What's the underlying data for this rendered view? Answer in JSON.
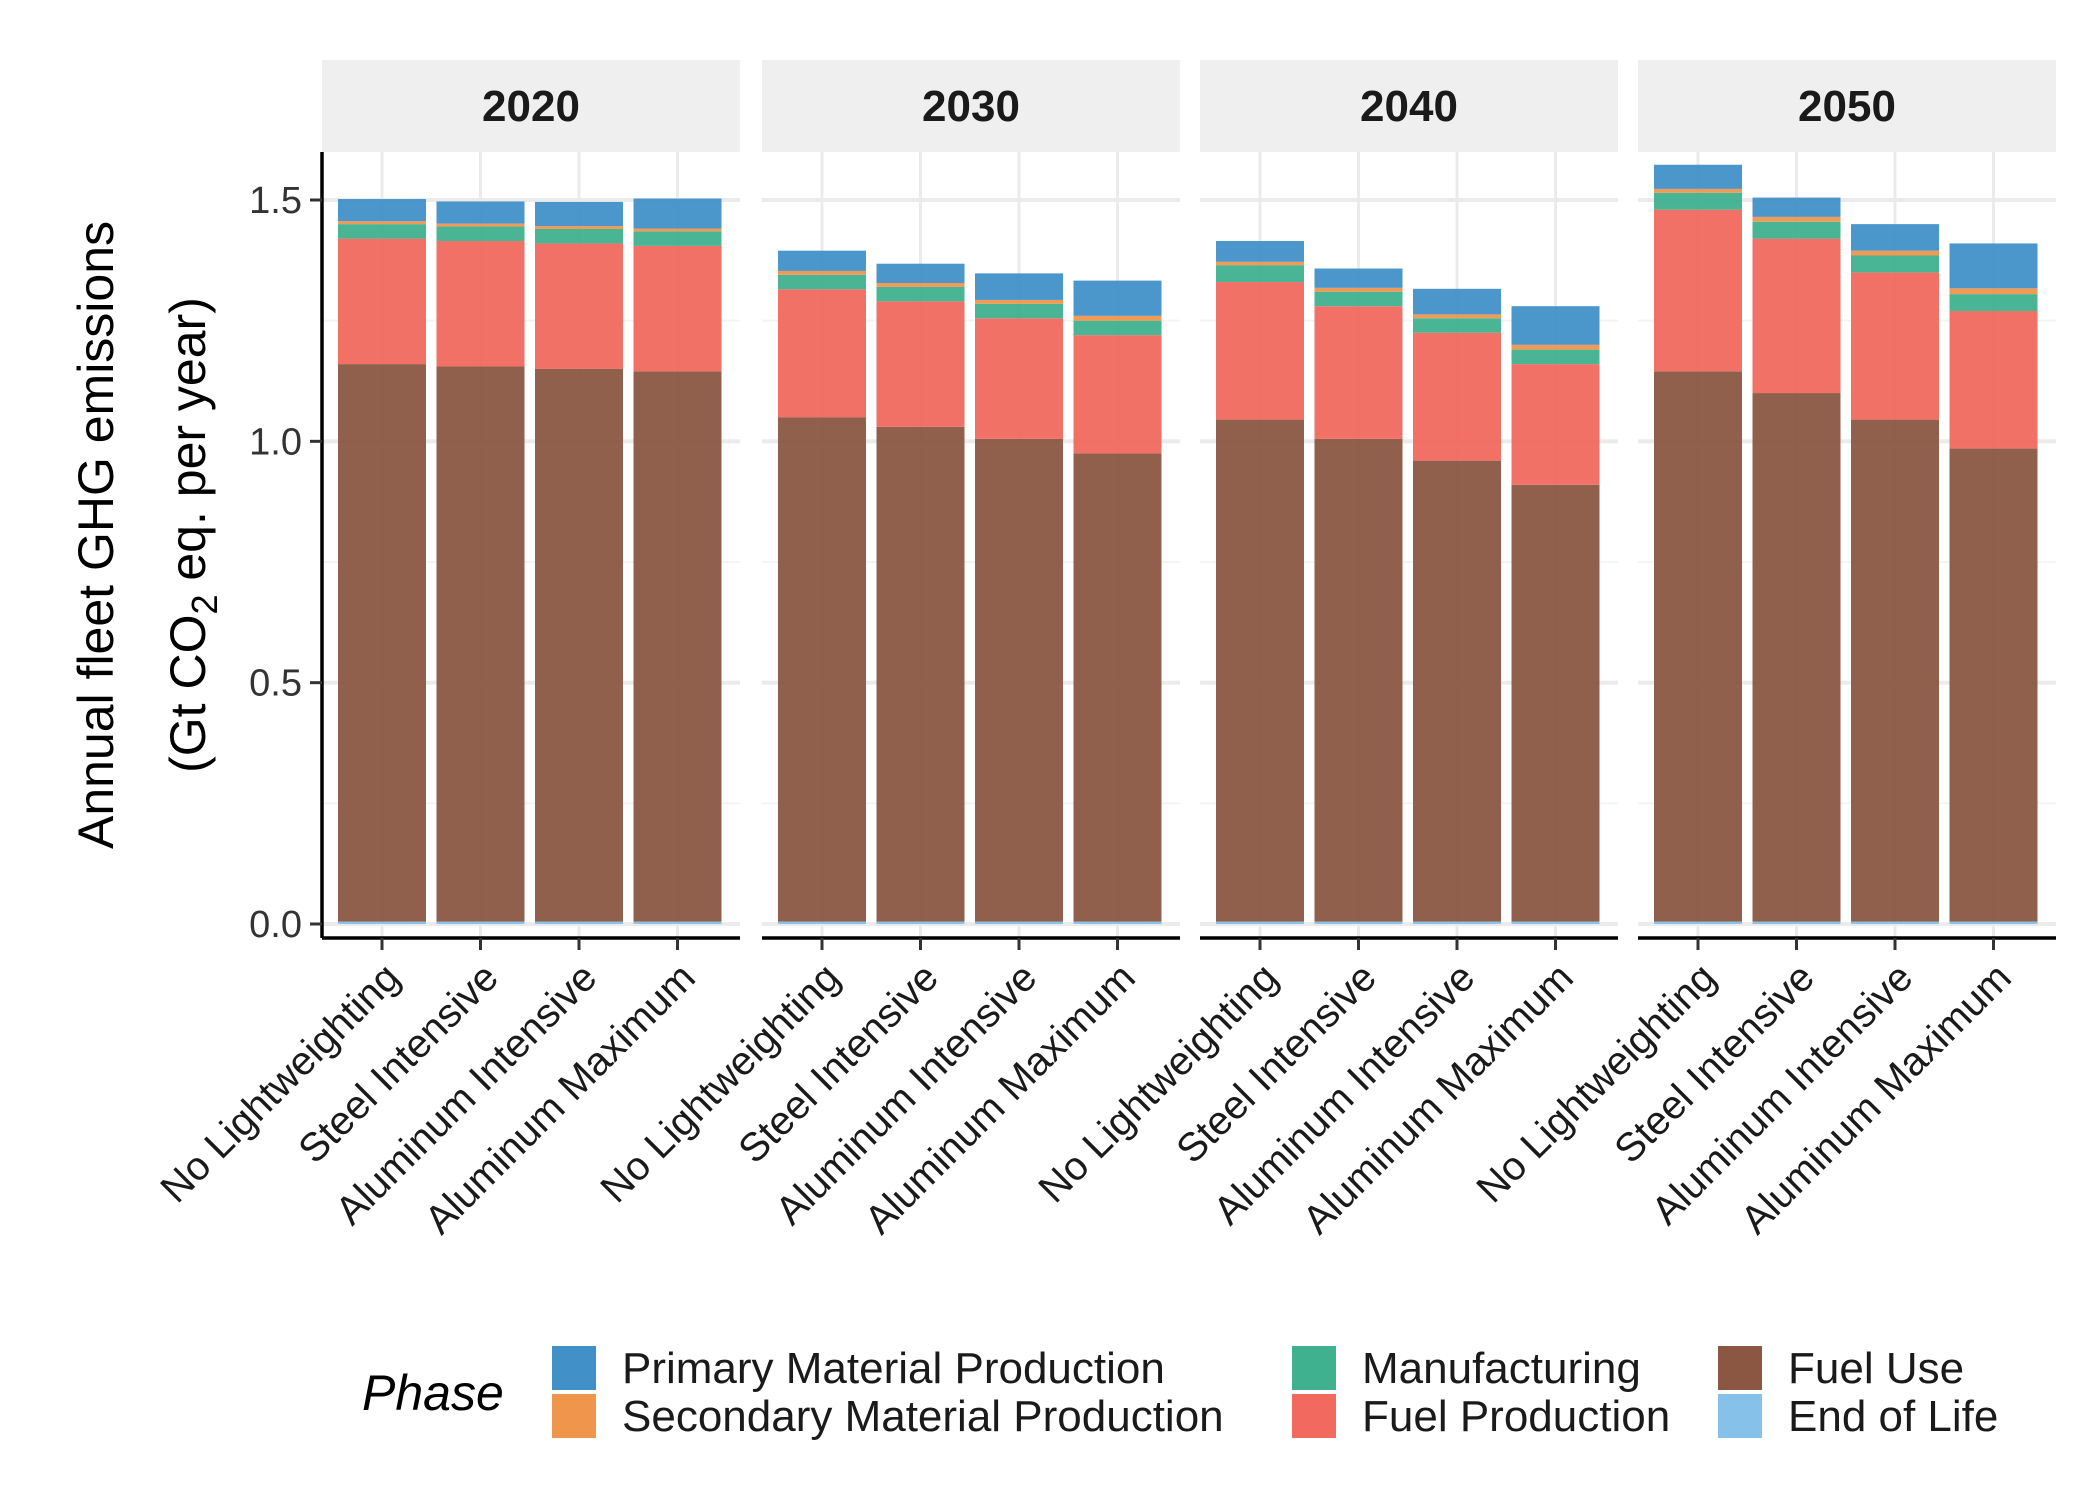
{
  "chart_data": {
    "type": "bar",
    "stacked": true,
    "facets": [
      "2020",
      "2030",
      "2040",
      "2050"
    ],
    "categories": [
      "No Lightweighting",
      "Steel Intensive",
      "Aluminum Intensive",
      "Aluminum Maximum"
    ],
    "ylabel_line1": "Annual fleet GHG emissions",
    "ylabel_line2_prefix": "(Gt CO",
    "ylabel_line2_sub": "2",
    "ylabel_line2_suffix": " eq. per year)",
    "ylim": [
      0,
      1.6
    ],
    "yticks": [
      0.0,
      0.5,
      1.0,
      1.5
    ],
    "ytick_labels": [
      "0.0",
      "0.5",
      "1.0",
      "1.5"
    ],
    "legend_title": "Phase",
    "legend_position": "bottom",
    "grid": true,
    "series": [
      {
        "name": "End of Life",
        "color": "#85C1E9",
        "values": [
          [
            0.005,
            0.005,
            0.005,
            0.005
          ],
          [
            0.005,
            0.005,
            0.005,
            0.005
          ],
          [
            0.005,
            0.005,
            0.005,
            0.005
          ],
          [
            0.005,
            0.005,
            0.005,
            0.005
          ]
        ]
      },
      {
        "name": "Fuel Use",
        "color": "#8B5742",
        "values": [
          [
            1.155,
            1.15,
            1.145,
            1.14
          ],
          [
            1.045,
            1.025,
            1.0,
            0.97
          ],
          [
            1.04,
            1.0,
            0.955,
            0.905
          ],
          [
            1.14,
            1.095,
            1.04,
            0.98
          ]
        ]
      },
      {
        "name": "Fuel Production",
        "color": "#F1695F",
        "values": [
          [
            0.26,
            0.26,
            0.26,
            0.26
          ],
          [
            0.265,
            0.26,
            0.25,
            0.245
          ],
          [
            0.285,
            0.275,
            0.265,
            0.25
          ],
          [
            0.335,
            0.32,
            0.305,
            0.285
          ]
        ]
      },
      {
        "name": "Manufacturing",
        "color": "#3FB18E",
        "values": [
          [
            0.03,
            0.03,
            0.03,
            0.03
          ],
          [
            0.03,
            0.03,
            0.03,
            0.03
          ],
          [
            0.035,
            0.03,
            0.03,
            0.03
          ],
          [
            0.035,
            0.035,
            0.035,
            0.035
          ]
        ]
      },
      {
        "name": "Secondary Material Production",
        "color": "#F0954C",
        "values": [
          [
            0.006,
            0.006,
            0.006,
            0.006
          ],
          [
            0.008,
            0.008,
            0.008,
            0.01
          ],
          [
            0.007,
            0.008,
            0.008,
            0.01
          ],
          [
            0.008,
            0.01,
            0.01,
            0.012
          ]
        ]
      },
      {
        "name": "Primary Material Production",
        "color": "#4190C8",
        "values": [
          [
            0.046,
            0.046,
            0.05,
            0.062
          ],
          [
            0.042,
            0.04,
            0.055,
            0.073
          ],
          [
            0.043,
            0.04,
            0.053,
            0.08
          ],
          [
            0.05,
            0.04,
            0.055,
            0.093
          ]
        ]
      }
    ],
    "legend_items": [
      {
        "name": "Primary Material Production",
        "color": "#4190C8"
      },
      {
        "name": "Secondary Material Production",
        "color": "#F0954C"
      },
      {
        "name": "Manufacturing",
        "color": "#3FB18E"
      },
      {
        "name": "Fuel Production",
        "color": "#F1695F"
      },
      {
        "name": "Fuel Use",
        "color": "#8B5742"
      },
      {
        "name": "End of Life",
        "color": "#85C1E9"
      }
    ]
  }
}
